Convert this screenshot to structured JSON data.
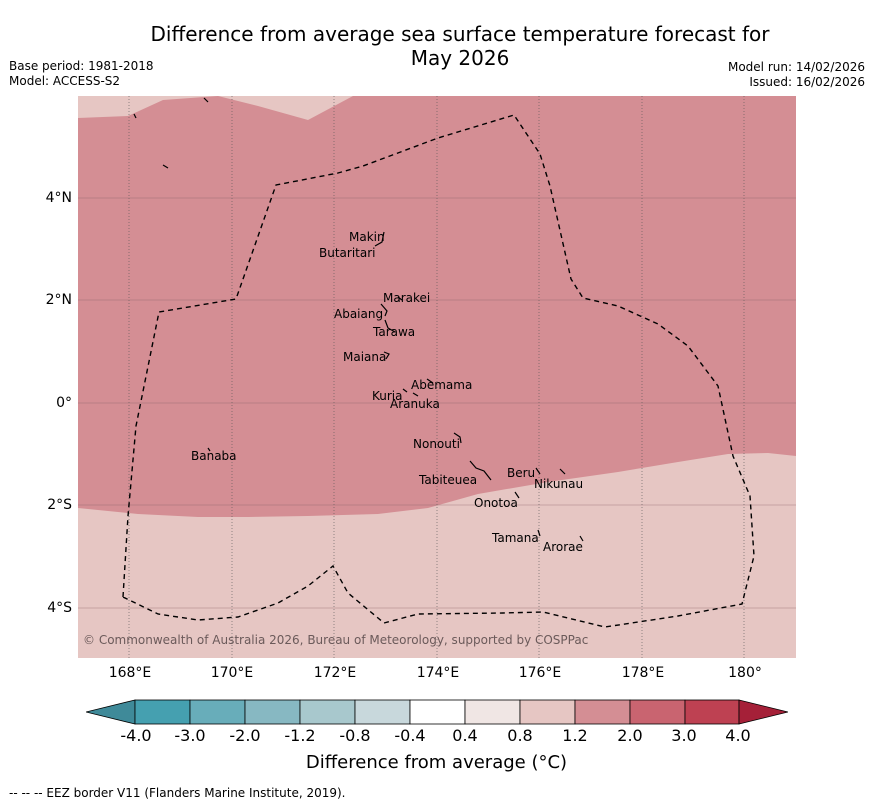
{
  "title_line1": "Difference from average sea surface temperature forecast for",
  "title_line2": "May 2026",
  "meta_left": {
    "base_period": "Base period: 1981-2018",
    "model": "Model: ACCESS-S2"
  },
  "meta_right": {
    "model_run": "Model run: 14/02/2026",
    "issued": "Issued: 16/02/2026"
  },
  "copyright": "© Commonwealth of Australia 2026, Bureau of Meteorology, supported by COSPPac",
  "lat_ticks": [
    "4°N",
    "2°N",
    "0°",
    "2°S",
    "4°S"
  ],
  "lon_ticks": [
    "168°E",
    "170°E",
    "172°E",
    "174°E",
    "176°E",
    "178°E",
    "180°"
  ],
  "islands": [
    {
      "name": "Makin"
    },
    {
      "name": "Butaritari"
    },
    {
      "name": "Marakei"
    },
    {
      "name": "Abaiang"
    },
    {
      "name": "Tarawa"
    },
    {
      "name": "Maiana"
    },
    {
      "name": "Abemama"
    },
    {
      "name": "Kuria"
    },
    {
      "name": "Aranuka"
    },
    {
      "name": "Nonouti"
    },
    {
      "name": "Banaba"
    },
    {
      "name": "Tabiteuea"
    },
    {
      "name": "Beru"
    },
    {
      "name": "Nikunau"
    },
    {
      "name": "Onotoa"
    },
    {
      "name": "Tamana"
    },
    {
      "name": "Arorae"
    }
  ],
  "colorbar": {
    "labels": [
      "-4.0",
      "-3.0",
      "-2.0",
      "-1.2",
      "-0.8",
      "-0.4",
      "0.4",
      "0.8",
      "1.2",
      "2.0",
      "3.0",
      "4.0"
    ],
    "colors": [
      "#3f8a99",
      "#45a0b0",
      "#68adba",
      "#87b8c2",
      "#a8c8cd",
      "#c8d8dc",
      "#ffffff",
      "#f0e6e4",
      "#e6c6c3",
      "#d48e94",
      "#c96470",
      "#be4152",
      "#a52038"
    ],
    "axis_label": "Difference from average (°C)"
  },
  "legend_footer": "--  --  -- EEZ border V11 (Flanders Marine Institute, 2019).",
  "field_colors": {
    "anomaly_1_2_to_2_0": "#d48e94",
    "anomaly_0_8_to_1_2": "#e6c6c3"
  }
}
